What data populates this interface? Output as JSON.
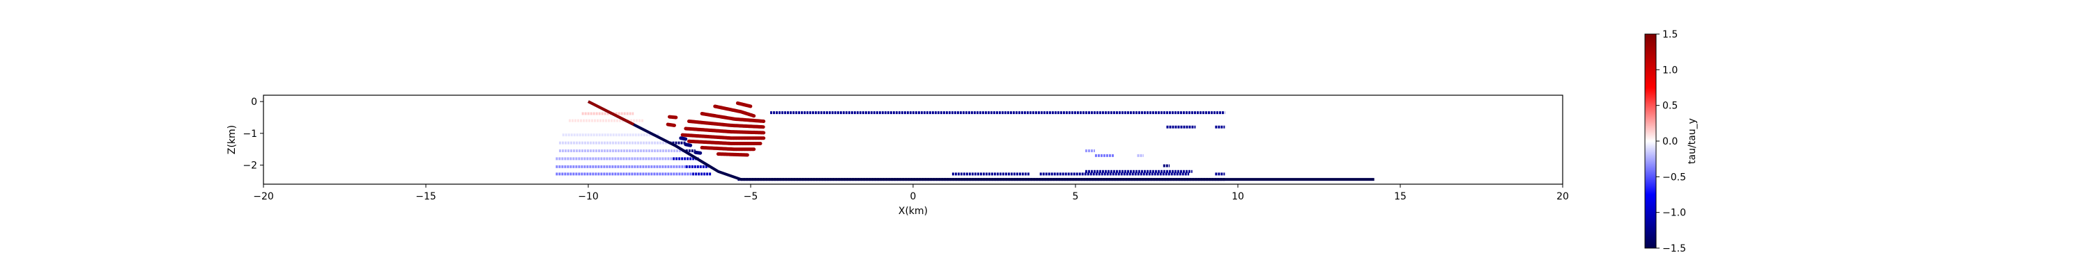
{
  "chart_data": {
    "type": "scatter",
    "xlabel": "X(km)",
    "ylabel": "Z(km)",
    "xlim": [
      -20,
      20
    ],
    "ylim": [
      -2.6,
      0.2
    ],
    "xticks": [
      -20,
      -15,
      -10,
      -5,
      0,
      5,
      10,
      15,
      20
    ],
    "yticks": [
      0,
      -1,
      -2
    ],
    "grid": false,
    "colorbar": {
      "label": "tau/tau_y",
      "colormap": "seismic",
      "min": -1.5,
      "max": 1.5,
      "ticks": [
        1.5,
        1.0,
        0.5,
        0.0,
        -0.5,
        -1.0,
        -1.5
      ],
      "colors": [
        "#00004c",
        "#0000ff",
        "#ffffff",
        "#ff0000",
        "#7f0000"
      ]
    },
    "fault_traces": [
      {
        "points": [
          [
            -10.0,
            0.0
          ],
          [
            -7.3,
            -1.4
          ],
          [
            -6.0,
            -2.2
          ],
          [
            -5.3,
            -2.45
          ],
          [
            14.2,
            -2.45
          ]
        ],
        "value": -1.5
      },
      {
        "points": [
          [
            -10.0,
            0.0
          ],
          [
            -8.6,
            -0.72
          ]
        ],
        "value": 1.4
      }
    ],
    "segments": [
      {
        "x0": -4.4,
        "x1": 9.6,
        "z": -0.35,
        "value": -1.2
      },
      {
        "x0": 7.8,
        "x1": 8.7,
        "z": -0.8,
        "value": -1.2
      },
      {
        "x0": 9.3,
        "x1": 9.6,
        "z": -0.8,
        "value": -1.2
      },
      {
        "x0": 5.3,
        "x1": 5.6,
        "z": -1.55,
        "value": -0.3
      },
      {
        "x0": 5.6,
        "x1": 6.2,
        "z": -1.7,
        "value": -0.4
      },
      {
        "x0": 6.9,
        "x1": 7.1,
        "z": -1.7,
        "value": -0.2
      },
      {
        "x0": 7.7,
        "x1": 7.9,
        "z": -2.02,
        "value": -1.3
      },
      {
        "x0": 5.3,
        "x1": 8.6,
        "z": -2.2,
        "value": -1.2
      },
      {
        "x0": 1.2,
        "x1": 3.6,
        "z": -2.28,
        "value": -1.2
      },
      {
        "x0": 3.9,
        "x1": 8.5,
        "z": -2.28,
        "value": -1.2
      },
      {
        "x0": 9.3,
        "x1": 9.6,
        "z": -2.28,
        "value": -1.2
      },
      {
        "x0": -5.4,
        "x1": 9.6,
        "z": -2.45,
        "value": -1.3
      },
      {
        "x0": -10.2,
        "x1": -8.6,
        "z": -0.38,
        "value": 0.15
      },
      {
        "x0": -10.6,
        "x1": -8.3,
        "z": -0.6,
        "value": 0.08
      },
      {
        "x0": -10.8,
        "x1": -7.8,
        "z": -1.05,
        "value": -0.08
      },
      {
        "x0": -10.9,
        "x1": -7.5,
        "z": -1.3,
        "value": -0.12
      },
      {
        "x0": -7.5,
        "x1": -7.0,
        "z": -1.3,
        "value": -1.3
      },
      {
        "x0": -10.9,
        "x1": -7.0,
        "z": -1.55,
        "value": -0.2
      },
      {
        "x0": -7.0,
        "x1": -6.7,
        "z": -1.55,
        "value": -1.3
      },
      {
        "x0": -11.0,
        "x1": -7.4,
        "z": -1.8,
        "value": -0.25
      },
      {
        "x0": -7.4,
        "x1": -6.6,
        "z": -1.8,
        "value": -1.0
      },
      {
        "x0": -11.0,
        "x1": -7.0,
        "z": -2.05,
        "value": -0.35
      },
      {
        "x0": -7.0,
        "x1": -6.3,
        "z": -2.05,
        "value": -1.0
      },
      {
        "x0": -11.0,
        "x1": -6.8,
        "z": -2.28,
        "value": -0.4
      },
      {
        "x0": -6.8,
        "x1": -6.2,
        "z": -2.28,
        "value": -1.0
      }
    ],
    "curved_segments": [
      {
        "points": [
          [
            -5.4,
            -0.05
          ],
          [
            -5.0,
            -0.15
          ]
        ],
        "value": 1.3
      },
      {
        "points": [
          [
            -6.1,
            -0.15
          ],
          [
            -5.3,
            -0.32
          ],
          [
            -4.9,
            -0.45
          ]
        ],
        "value": 1.3
      },
      {
        "points": [
          [
            -6.5,
            -0.38
          ],
          [
            -5.5,
            -0.55
          ],
          [
            -4.6,
            -0.62
          ]
        ],
        "value": 1.3
      },
      {
        "points": [
          [
            -6.9,
            -0.62
          ],
          [
            -5.6,
            -0.75
          ],
          [
            -4.6,
            -0.8
          ]
        ],
        "value": 1.3
      },
      {
        "points": [
          [
            -7.0,
            -0.85
          ],
          [
            -5.6,
            -0.95
          ],
          [
            -4.6,
            -0.98
          ]
        ],
        "value": 1.3
      },
      {
        "points": [
          [
            -7.1,
            -1.05
          ],
          [
            -5.6,
            -1.15
          ],
          [
            -4.6,
            -1.15
          ]
        ],
        "value": 1.3
      },
      {
        "points": [
          [
            -6.9,
            -1.25
          ],
          [
            -5.6,
            -1.32
          ],
          [
            -4.7,
            -1.32
          ]
        ],
        "value": 1.3
      },
      {
        "points": [
          [
            -6.5,
            -1.45
          ],
          [
            -5.5,
            -1.5
          ],
          [
            -4.9,
            -1.5
          ]
        ],
        "value": 1.3
      },
      {
        "points": [
          [
            -6.0,
            -1.65
          ],
          [
            -5.1,
            -1.68
          ]
        ],
        "value": 1.3
      },
      {
        "points": [
          [
            -7.5,
            -0.48
          ],
          [
            -7.3,
            -0.5
          ]
        ],
        "value": 1.3
      },
      {
        "points": [
          [
            -7.55,
            -0.72
          ],
          [
            -7.35,
            -0.75
          ]
        ],
        "value": 1.3
      },
      {
        "points": [
          [
            -7.0,
            -1.35
          ],
          [
            -6.85,
            -1.38
          ]
        ],
        "value": -1.3
      },
      {
        "points": [
          [
            -6.7,
            -1.6
          ],
          [
            -6.55,
            -1.62
          ]
        ],
        "value": -1.3
      },
      {
        "points": [
          [
            -7.15,
            -1.15
          ],
          [
            -7.0,
            -1.18
          ]
        ],
        "value": -1.3
      }
    ]
  }
}
